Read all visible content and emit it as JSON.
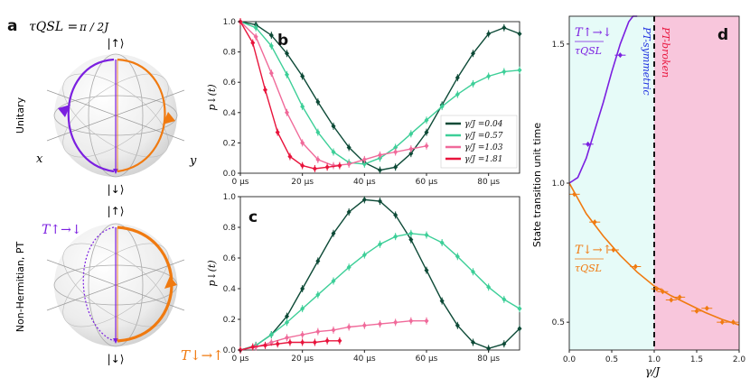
{
  "panel_a": {
    "label": "a",
    "tau_qsl_lhs": "τQSL =",
    "tau_qsl_rhs": "π / 2J",
    "unitary_label": "Unitary",
    "nonherm_label": "Non-Hermitian, PT",
    "up_ket": "|↑⟩",
    "down_ket": "|↓⟩",
    "x_label": "x",
    "y_label": "y",
    "t_updown": "T↑→↓",
    "t_downup": "T↓→↑",
    "colors": {
      "purple": "#7b1fe0",
      "orange": "#f07a10",
      "sphere": "#e8e8e8"
    }
  },
  "chart_data": [
    {
      "type": "line",
      "panel": "b",
      "ylabel": "p↓(t)",
      "xlim": [
        0,
        90
      ],
      "ylim": [
        0,
        1.0
      ],
      "xticks": [
        "0 μs",
        "20 μs",
        "40 μs",
        "60 μs",
        "80 μs"
      ],
      "yticks": [
        "0.0",
        "0.2",
        "0.4",
        "0.6",
        "0.8",
        "1.0"
      ],
      "legend": "center-right",
      "series": [
        {
          "name": "γ/J =0.04",
          "color": "#0d4a37",
          "x": [
            0,
            5,
            10,
            15,
            20,
            25,
            30,
            35,
            40,
            45,
            50,
            55,
            60,
            65,
            70,
            75,
            80,
            85,
            90
          ],
          "y": [
            1.0,
            0.98,
            0.91,
            0.79,
            0.64,
            0.47,
            0.31,
            0.17,
            0.07,
            0.02,
            0.04,
            0.13,
            0.27,
            0.45,
            0.63,
            0.79,
            0.92,
            0.96,
            0.92
          ]
        },
        {
          "name": "γ/J =0.57",
          "color": "#3dcf98",
          "x": [
            0,
            5,
            10,
            15,
            20,
            25,
            30,
            35,
            40,
            45,
            50,
            55,
            60,
            65,
            70,
            75,
            80,
            85,
            90
          ],
          "y": [
            1.0,
            0.96,
            0.84,
            0.65,
            0.44,
            0.27,
            0.14,
            0.07,
            0.06,
            0.1,
            0.17,
            0.26,
            0.35,
            0.44,
            0.52,
            0.59,
            0.64,
            0.67,
            0.68
          ]
        },
        {
          "name": "γ/J =1.03",
          "color": "#f06a9a",
          "x": [
            0,
            5,
            10,
            15,
            20,
            25,
            30,
            35,
            40,
            45,
            50,
            55,
            60
          ],
          "y": [
            1.0,
            0.9,
            0.66,
            0.4,
            0.2,
            0.09,
            0.05,
            0.06,
            0.09,
            0.12,
            0.14,
            0.16,
            0.18
          ]
        },
        {
          "name": "γ/J =1.81",
          "color": "#e8143c",
          "x": [
            0,
            4,
            8,
            12,
            16,
            20,
            24,
            28,
            32
          ],
          "y": [
            1.0,
            0.86,
            0.55,
            0.27,
            0.11,
            0.05,
            0.03,
            0.04,
            0.05
          ]
        }
      ]
    },
    {
      "type": "line",
      "panel": "c",
      "ylabel": "p↓(t)",
      "xlim": [
        0,
        90
      ],
      "ylim": [
        0,
        1.0
      ],
      "xticks": [
        "0 μs",
        "20 μs",
        "40 μs",
        "60 μs",
        "80 μs"
      ],
      "yticks": [
        "0.0",
        "0.2",
        "0.4",
        "0.6",
        "0.8",
        "1.0"
      ],
      "series": [
        {
          "name": "γ/J =0.04",
          "color": "#0d4a37",
          "x": [
            0,
            5,
            10,
            15,
            20,
            25,
            30,
            35,
            40,
            45,
            50,
            55,
            60,
            65,
            70,
            75,
            80,
            85,
            90
          ],
          "y": [
            0.0,
            0.03,
            0.1,
            0.22,
            0.4,
            0.58,
            0.76,
            0.9,
            0.98,
            0.97,
            0.88,
            0.72,
            0.52,
            0.32,
            0.16,
            0.05,
            0.01,
            0.04,
            0.14
          ]
        },
        {
          "name": "γ/J =0.57",
          "color": "#3dcf98",
          "x": [
            0,
            5,
            10,
            15,
            20,
            25,
            30,
            35,
            40,
            45,
            50,
            55,
            60,
            65,
            70,
            75,
            80,
            85,
            90
          ],
          "y": [
            0.0,
            0.03,
            0.1,
            0.18,
            0.27,
            0.36,
            0.45,
            0.54,
            0.62,
            0.69,
            0.74,
            0.76,
            0.75,
            0.7,
            0.61,
            0.51,
            0.41,
            0.33,
            0.27
          ]
        },
        {
          "name": "γ/J =1.03",
          "color": "#f06a9a",
          "x": [
            0,
            5,
            10,
            15,
            20,
            25,
            30,
            35,
            40,
            45,
            50,
            55,
            60
          ],
          "y": [
            0.0,
            0.02,
            0.05,
            0.08,
            0.1,
            0.12,
            0.13,
            0.15,
            0.16,
            0.17,
            0.18,
            0.19,
            0.19
          ]
        },
        {
          "name": "γ/J =1.81",
          "color": "#e8143c",
          "x": [
            0,
            4,
            8,
            12,
            16,
            20,
            24,
            28,
            32
          ],
          "y": [
            0.0,
            0.02,
            0.03,
            0.04,
            0.05,
            0.05,
            0.05,
            0.06,
            0.06
          ]
        }
      ]
    },
    {
      "type": "scatter",
      "panel": "d",
      "xlabel": "γ/J",
      "ylabel": "State transition unit time",
      "xlim": [
        0,
        2.0
      ],
      "ylim": [
        0.4,
        1.6
      ],
      "xticks": [
        "0.0",
        "0.5",
        "1.0",
        "1.5",
        "2.0"
      ],
      "yticks": [
        "0.5",
        "1.0",
        "1.5"
      ],
      "regions": [
        {
          "label": "PT-symmetric",
          "x": [
            0,
            1.0
          ],
          "color": "#e6fbf8"
        },
        {
          "label": "PT-broken",
          "x": [
            1.0,
            2.0
          ],
          "color": "#f8c6dc"
        }
      ],
      "series": [
        {
          "name": "T↑→↓ / τQSL",
          "color": "#7b1fe0",
          "fit_x": [
            0,
            0.1,
            0.2,
            0.3,
            0.4,
            0.5,
            0.6,
            0.7,
            0.75,
            0.8
          ],
          "fit_y": [
            1.0,
            1.02,
            1.09,
            1.19,
            1.29,
            1.4,
            1.5,
            1.58,
            1.61,
            1.63
          ],
          "points_x": [
            0.22,
            0.6
          ],
          "points_y": [
            1.14,
            1.46
          ]
        },
        {
          "name": "T↓→↑ / τQSL",
          "color": "#f07a10",
          "fit_x": [
            0,
            0.2,
            0.4,
            0.6,
            0.8,
            1.0,
            1.2,
            1.4,
            1.6,
            1.8,
            2.0
          ],
          "fit_y": [
            1.0,
            0.89,
            0.81,
            0.74,
            0.68,
            0.63,
            0.595,
            0.565,
            0.535,
            0.51,
            0.49
          ],
          "points_x": [
            0.06,
            0.3,
            0.52,
            0.78,
            1.03,
            1.1,
            1.2,
            1.3,
            1.5,
            1.62,
            1.8,
            1.93
          ],
          "points_y": [
            0.96,
            0.86,
            0.76,
            0.7,
            0.62,
            0.61,
            0.58,
            0.59,
            0.54,
            0.55,
            0.5,
            0.5
          ]
        }
      ]
    }
  ],
  "labels": {
    "b": "b",
    "c": "c",
    "d": "d",
    "pt_symmetric": "PT-symmetric",
    "pt_broken": "PT-broken",
    "t_updown_num": "T↑→↓",
    "t_downup_num": "T↓→↑",
    "tau_den": "τQSL",
    "d_xlabel": "γ/J",
    "d_ylabel": "State transition unit time",
    "p_ylabel": "p↓(t)"
  }
}
